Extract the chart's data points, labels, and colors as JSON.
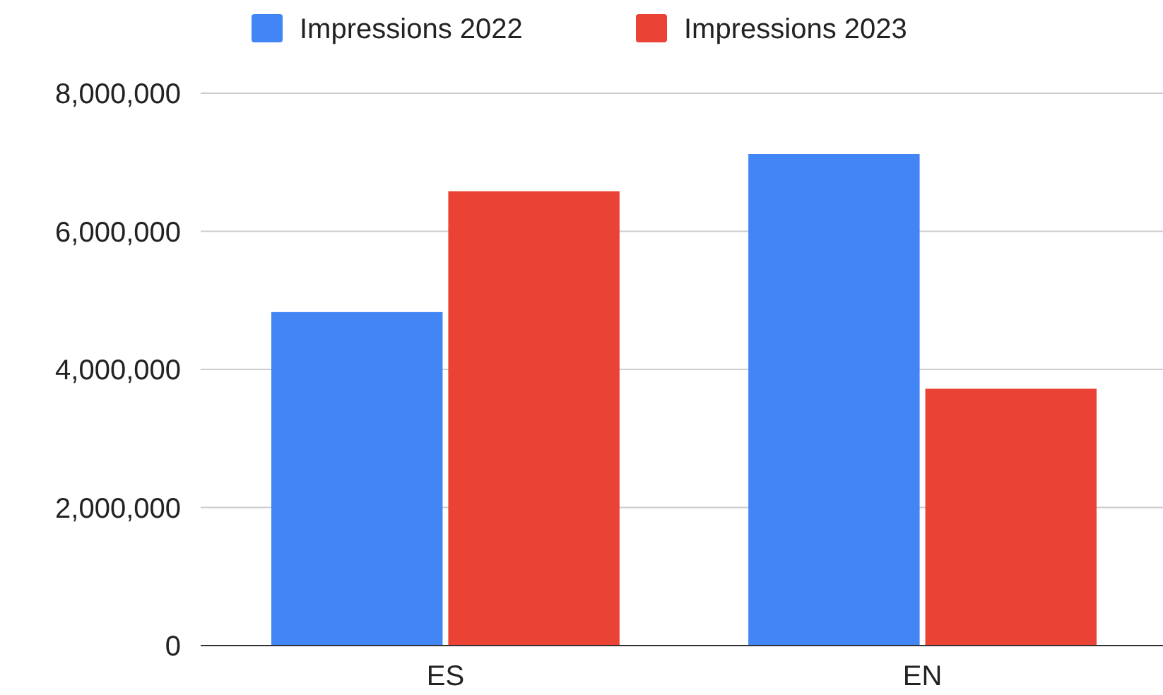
{
  "chart_data": {
    "type": "bar",
    "categories": [
      "ES",
      "EN"
    ],
    "series": [
      {
        "name": "Impressions 2022",
        "color": "#4285f4",
        "values": [
          4830000,
          7120000
        ]
      },
      {
        "name": "Impressions 2023",
        "color": "#ea4335",
        "values": [
          6580000,
          3720000
        ]
      }
    ],
    "ylim": [
      0,
      8000000
    ],
    "yticks": [
      {
        "value": 0,
        "label": "0"
      },
      {
        "value": 2000000,
        "label": "2,000,000"
      },
      {
        "value": 4000000,
        "label": "4,000,000"
      },
      {
        "value": 6000000,
        "label": "6,000,000"
      },
      {
        "value": 8000000,
        "label": "8,000,000"
      }
    ],
    "grid": "y",
    "legend": "top"
  }
}
